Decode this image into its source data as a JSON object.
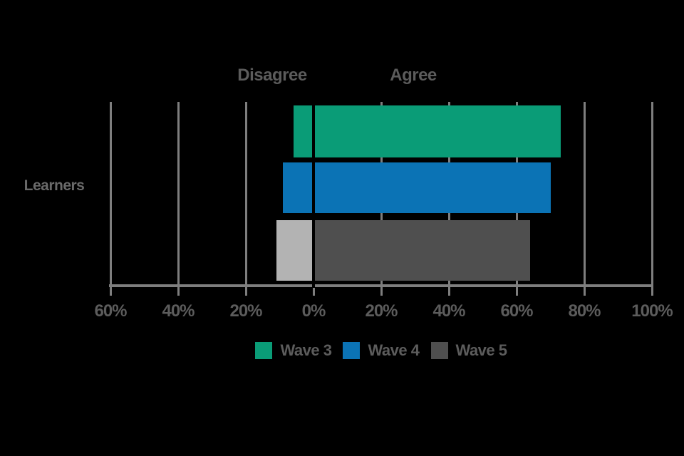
{
  "labels": {
    "disagree": "Disagree",
    "agree": "Agree",
    "category": "Learners"
  },
  "axis": {
    "tick_values": [
      -60,
      -40,
      -20,
      0,
      20,
      40,
      60,
      80,
      100
    ],
    "tick_labels": [
      "60%",
      "40%",
      "20%",
      "0%",
      "20%",
      "40%",
      "60%",
      "80%",
      "100%"
    ]
  },
  "legend": [
    {
      "label": "Wave 3",
      "color": "#0a9c77"
    },
    {
      "label": "Wave 4",
      "color": "#0b73b5"
    },
    {
      "label": "Wave 5",
      "color": "#4f4f4f"
    }
  ],
  "colors": {
    "background": "#000000",
    "text": "#5c5c5c",
    "gridline": "#7e7e7e",
    "axis_line": "#7e7e7e",
    "zero_line": "#000000",
    "wave3_green": "#0a9c77",
    "wave4_blue": "#0b73b5",
    "wave5_dark_gray": "#4f4f4f",
    "wave5_light_gray": "#b3b3b3"
  },
  "chart_data": {
    "type": "bar",
    "subtype": "diverging-horizontal",
    "title": "",
    "category": "Learners",
    "xlabel_left": "Disagree",
    "xlabel_right": "Agree",
    "xlim": [
      -60,
      100
    ],
    "grid": true,
    "legend_position": "bottom",
    "series": [
      {
        "name": "Wave 3",
        "disagree": -6,
        "agree": 73,
        "disagree_color": "#0a9c77",
        "agree_color": "#0a9c77"
      },
      {
        "name": "Wave 4",
        "disagree": -9,
        "agree": 70,
        "disagree_color": "#0b73b5",
        "agree_color": "#0b73b5"
      },
      {
        "name": "Wave 5",
        "disagree": -11,
        "agree": 64,
        "disagree_color": "#b3b3b3",
        "agree_color": "#4f4f4f"
      }
    ]
  }
}
